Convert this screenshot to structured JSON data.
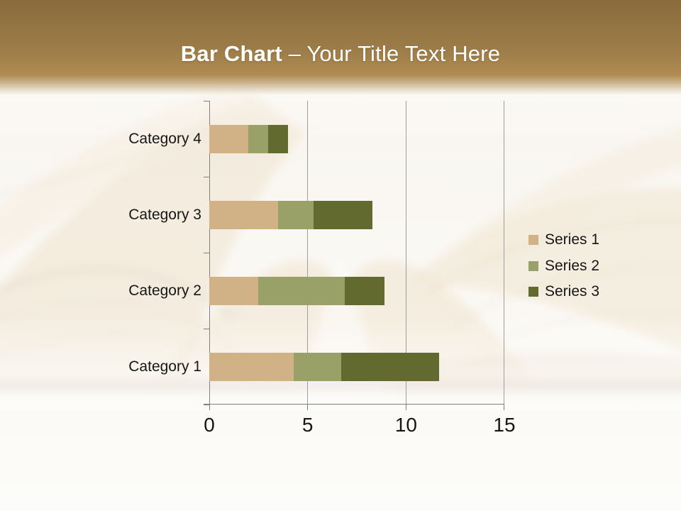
{
  "slide": {
    "header": {
      "title_bold": "Bar Chart",
      "title_rest": "– Your Title Text Here"
    }
  },
  "chart_data": {
    "type": "bar",
    "orientation": "horizontal",
    "stacked": true,
    "title": "",
    "xlabel": "",
    "ylabel": "",
    "categories": [
      "Category 1",
      "Category 2",
      "Category 3",
      "Category 4"
    ],
    "series": [
      {
        "name": "Series 1",
        "color": "#d1b186",
        "values": [
          4.3,
          2.5,
          3.5,
          2
        ]
      },
      {
        "name": "Series 2",
        "color": "#99a169",
        "values": [
          2.4,
          4.4,
          1.8,
          1
        ]
      },
      {
        "name": "Series 3",
        "color": "#626a30",
        "values": [
          5,
          2,
          3,
          1
        ]
      }
    ],
    "x_ticks": [
      0,
      5,
      10,
      15
    ],
    "xlim": [
      0,
      15
    ],
    "grid": "vertical-major-gridlines",
    "legend_position": "right",
    "legend_entries": [
      "Series 1",
      "Series 2",
      "Series 3"
    ]
  },
  "colors": {
    "header_top": "#8a6b3c",
    "header_mid": "#9c7c48",
    "header_bottom": "#b08c52",
    "title_text": "#ffffff",
    "axis_text": "#161616",
    "gridline": "#9d9d9d",
    "axis_line": "#808080"
  },
  "decor": {
    "background_image": "faded-open-books-photo"
  }
}
